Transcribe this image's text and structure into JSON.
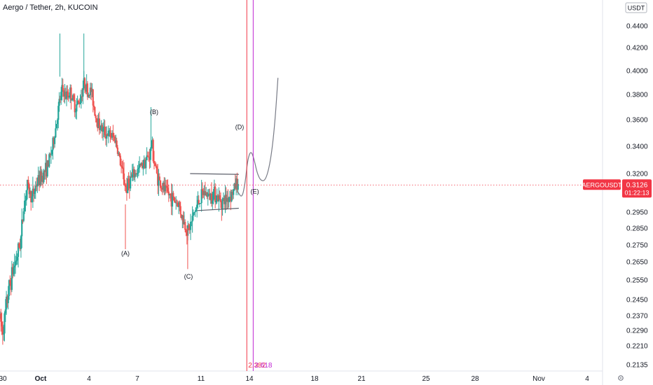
{
  "header": {
    "title": "Aergo / Tether, 2h, KUCOIN",
    "currency_button": "USDT",
    "settings_icon": "gear-icon"
  },
  "price_label": {
    "symbol": "AERGOUSDT",
    "price": "0.3126",
    "countdown": "01:22:13",
    "color": "#f23645"
  },
  "fib_labels": {
    "red": "2.382",
    "purple": "2.618"
  },
  "colors": {
    "up": "#26a69a",
    "down": "#ef5350",
    "red_line": "#f23645",
    "purple_line": "#c026d3",
    "projection": "#787b86",
    "current_price_line": "#f23645"
  },
  "chart_data": {
    "type": "candlestick",
    "title": "Aergo / Tether, 2h, KUCOIN",
    "xlabel": "",
    "ylabel": "",
    "x_ticks": [
      "30",
      "Oct",
      "4",
      "7",
      "11",
      "14",
      "18",
      "21",
      "25",
      "28",
      "Nov",
      "4"
    ],
    "y_ticks": [
      0.44,
      0.42,
      0.4,
      0.38,
      0.36,
      0.34,
      0.32,
      0.295,
      0.285,
      0.275,
      0.265,
      0.255,
      0.245,
      0.237,
      0.229,
      0.221,
      0.2135
    ],
    "y_tick_labels": [
      "0.4400",
      "0.4200",
      "0.4000",
      "0.3800",
      "0.3600",
      "0.3400",
      "0.3200",
      "0.2950",
      "0.2850",
      "0.2750",
      "0.2650",
      "0.2550",
      "0.2450",
      "0.2370",
      "0.2290",
      "0.2210",
      "0.2135"
    ],
    "current_price": 0.3126,
    "grid": false,
    "path_points": [
      [
        0.0,
        0.236
      ],
      [
        0.15,
        0.229
      ],
      [
        0.3,
        0.235
      ],
      [
        0.5,
        0.248
      ],
      [
        0.8,
        0.26
      ],
      [
        1.0,
        0.266
      ],
      [
        1.3,
        0.278
      ],
      [
        1.5,
        0.3
      ],
      [
        1.7,
        0.312
      ],
      [
        2.0,
        0.304
      ],
      [
        2.3,
        0.314
      ],
      [
        2.6,
        0.318
      ],
      [
        3.0,
        0.326
      ],
      [
        3.3,
        0.34
      ],
      [
        3.5,
        0.355
      ],
      [
        3.7,
        0.372
      ],
      [
        3.9,
        0.385
      ],
      [
        4.1,
        0.378
      ],
      [
        4.4,
        0.382
      ],
      [
        4.7,
        0.37
      ],
      [
        5.0,
        0.375
      ],
      [
        5.3,
        0.392
      ],
      [
        5.5,
        0.38
      ],
      [
        5.7,
        0.384
      ],
      [
        6.0,
        0.362
      ],
      [
        6.3,
        0.354
      ],
      [
        6.6,
        0.35
      ],
      [
        6.9,
        0.348
      ],
      [
        7.2,
        0.346
      ],
      [
        7.5,
        0.33
      ],
      [
        7.7,
        0.318
      ],
      [
        7.9,
        0.31
      ],
      [
        8.1,
        0.315
      ],
      [
        8.3,
        0.318
      ],
      [
        8.6,
        0.322
      ],
      [
        8.9,
        0.327
      ],
      [
        9.2,
        0.331
      ],
      [
        9.4,
        0.334
      ],
      [
        9.5,
        0.345
      ],
      [
        9.6,
        0.332
      ],
      [
        9.8,
        0.32
      ],
      [
        10.0,
        0.314
      ],
      [
        10.3,
        0.309
      ],
      [
        10.6,
        0.306
      ],
      [
        10.9,
        0.303
      ],
      [
        11.2,
        0.3
      ],
      [
        11.4,
        0.292
      ],
      [
        11.6,
        0.286
      ],
      [
        11.8,
        0.284
      ],
      [
        12.0,
        0.289
      ],
      [
        12.2,
        0.296
      ],
      [
        12.5,
        0.303
      ],
      [
        12.8,
        0.308
      ],
      [
        13.1,
        0.305
      ],
      [
        13.4,
        0.308
      ],
      [
        13.7,
        0.303
      ],
      [
        14.0,
        0.302
      ],
      [
        14.3,
        0.305
      ],
      [
        14.6,
        0.308
      ],
      [
        14.8,
        0.315
      ],
      [
        14.9,
        0.31
      ]
    ],
    "candles": [],
    "annotations": [
      {
        "label": "(A)",
        "x": 7.85,
        "y": 0.27
      },
      {
        "label": "(B)",
        "x": 9.65,
        "y": 0.366
      },
      {
        "label": "(C)",
        "x": 11.8,
        "y": 0.257
      },
      {
        "label": "(D)",
        "x": 15.0,
        "y": 0.3545
      },
      {
        "label": "(E)",
        "x": 15.95,
        "y": 0.3085
      }
    ],
    "triangle": {
      "upper": [
        [
          11.9,
          0.32
        ],
        [
          14.95,
          0.3195
        ]
      ],
      "lower": [
        [
          12.35,
          0.296
        ],
        [
          14.95,
          0.2975
        ]
      ]
    },
    "projection": [
      [
        14.9,
        0.308
      ],
      [
        15.15,
        0.304
      ],
      [
        15.35,
        0.314
      ],
      [
        15.5,
        0.33
      ],
      [
        15.7,
        0.337
      ],
      [
        15.9,
        0.331
      ],
      [
        16.1,
        0.32
      ],
      [
        16.35,
        0.315
      ],
      [
        16.65,
        0.316
      ],
      [
        16.95,
        0.33
      ],
      [
        17.2,
        0.356
      ],
      [
        17.4,
        0.394
      ]
    ],
    "vertical_lines": [
      {
        "x": 15.45,
        "color": "#f23645",
        "label": "2.382"
      },
      {
        "x": 15.85,
        "color": "#c026d3",
        "label": "2.618"
      }
    ]
  }
}
